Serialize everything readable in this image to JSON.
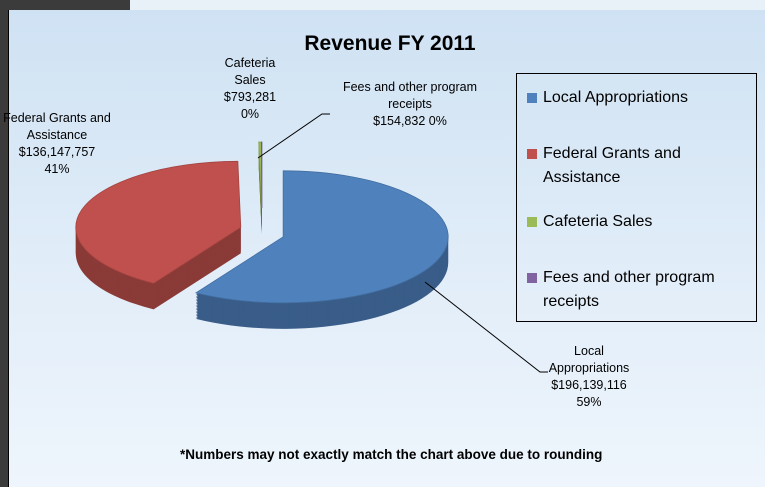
{
  "chart_data": {
    "type": "pie",
    "title": "Revenue FY 2011",
    "categories": [
      "Local Appropriations",
      "Federal Grants and Assistance",
      "Cafeteria Sales",
      "Fees and other program receipts"
    ],
    "values": [
      196139116,
      136147757,
      793281,
      154832
    ],
    "value_labels": [
      "$196,139,116",
      "$136,147,757",
      "$793,281",
      "$154,832"
    ],
    "percent_labels": [
      "59%",
      "41%",
      "0%",
      "0%"
    ],
    "colors": [
      "#4f81bd",
      "#c0504d",
      "#9bbb59",
      "#8064a2"
    ],
    "legend": "right",
    "footnote": "*Numbers may not exactly match the chart above due to rounding"
  }
}
